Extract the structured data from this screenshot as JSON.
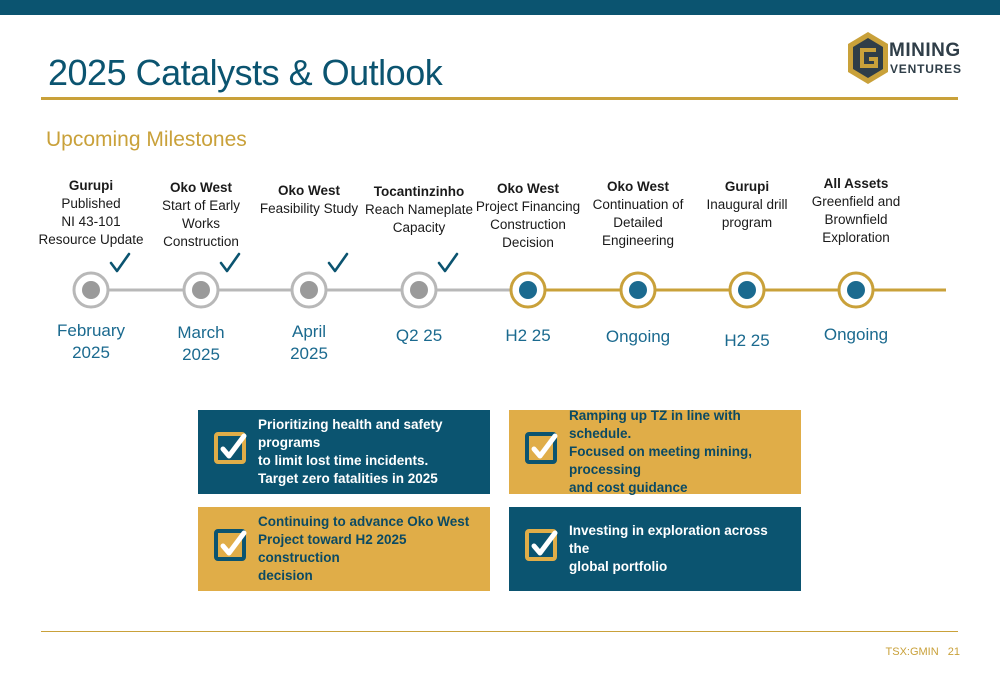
{
  "header": {
    "title": "2025 Catalysts & Outlook",
    "logo_line1": "MINING",
    "logo_line2": "VENTURES"
  },
  "section": {
    "subtitle": "Upcoming Milestones"
  },
  "colors": {
    "primary_blue": "#0b5470",
    "gold": "#c9a13a",
    "box_gold": "#e0ad48",
    "completed_node": "#9a9a9a",
    "pending_node": "#1b6a8f"
  },
  "milestones": [
    {
      "heading": "Gurupi",
      "body": [
        "Published",
        "NI 43-101",
        "Resource Update"
      ],
      "date": "February\n2025",
      "completed": true
    },
    {
      "heading": "Oko West",
      "body": [
        "Start of Early",
        "Works",
        "Construction"
      ],
      "date": "March\n2025",
      "completed": true
    },
    {
      "heading": "Oko West",
      "body": [
        "Feasibility Study"
      ],
      "date": "April\n2025",
      "completed": true
    },
    {
      "heading": "Tocantinzinho",
      "body": [
        "Reach Nameplate",
        "Capacity"
      ],
      "date": "Q2 25",
      "completed": true
    },
    {
      "heading": "Oko West",
      "body": [
        "Project Financing",
        "Construction",
        "Decision"
      ],
      "date": "H2 25",
      "completed": false
    },
    {
      "heading": "Oko West",
      "body": [
        "Continuation of",
        "Detailed",
        "Engineering"
      ],
      "date": "Ongoing",
      "completed": false
    },
    {
      "heading": "Gurupi",
      "body": [
        "Inaugural drill",
        "program"
      ],
      "date": "H2 25",
      "completed": false
    },
    {
      "heading": "All Assets",
      "body": [
        "Greenfield and",
        "Brownfield",
        "Exploration"
      ],
      "date": "Ongoing",
      "completed": false
    }
  ],
  "priorities": [
    {
      "text": "Prioritizing health and safety programs\nto limit lost time incidents.\nTarget zero fatalities in 2025",
      "style": "blue",
      "icon": "checkbox-icon"
    },
    {
      "text": "Ramping up TZ in line with schedule.\nFocused on meeting mining, processing\nand cost guidance",
      "style": "gold",
      "icon": "checkbox-icon"
    },
    {
      "text": "Continuing to advance Oko West\nProject toward H2 2025 construction\ndecision",
      "style": "gold",
      "icon": "checkbox-icon"
    },
    {
      "text": "Investing in exploration across the\nglobal portfolio",
      "style": "blue",
      "icon": "checkbox-icon"
    }
  ],
  "footer": {
    "ticker": "TSX:GMIN",
    "page": "21"
  }
}
